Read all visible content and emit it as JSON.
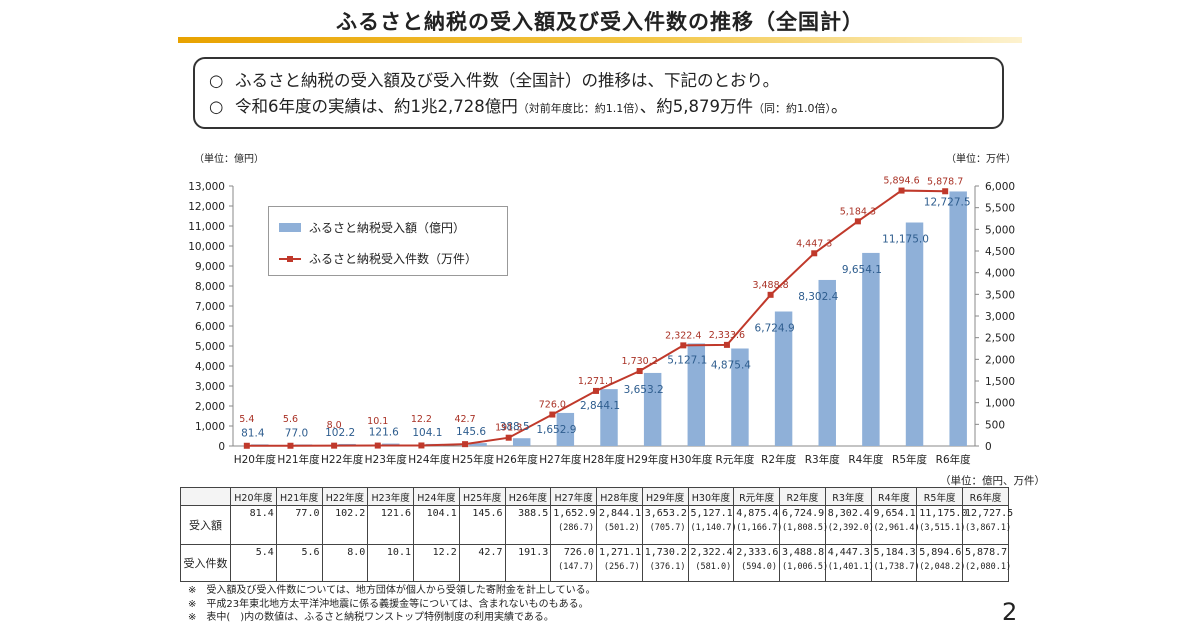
{
  "title": "ふるさと納税の受入額及び受入件数の推移（全国計）",
  "summary": {
    "bullet": "○",
    "line1": "ふるさと納税の受入額及び受入件数（全国計）の推移は、下記のとおり。",
    "line2_part1": "令和6年度の実績は、約1兆2,728億円",
    "line2_note1": "（対前年度比：約1.1倍）",
    "line2_part2": "、約5,879万件",
    "line2_note2": "（同：約1.0倍）",
    "line2_end": "。"
  },
  "chart_data": {
    "type": "bar+line",
    "categories": [
      "H20年度",
      "H21年度",
      "H22年度",
      "H23年度",
      "H24年度",
      "H25年度",
      "H26年度",
      "H27年度",
      "H28年度",
      "H29年度",
      "H30年度",
      "R元年度",
      "R2年度",
      "R3年度",
      "R4年度",
      "R5年度",
      "R6年度"
    ],
    "series": [
      {
        "name": "ふるさと納税受入額（億円）",
        "type": "bar",
        "axis": "left",
        "values": [
          81.4,
          77.0,
          102.2,
          121.6,
          104.1,
          145.6,
          388.5,
          1652.9,
          2844.1,
          3653.2,
          5127.1,
          4875.4,
          6724.9,
          8302.4,
          9654.1,
          11175.0,
          12727.5
        ],
        "labels": [
          "81.4",
          "77.0",
          "102.2",
          "121.6",
          "104.1",
          "145.6",
          "388.5",
          "1,652.9",
          "2,844.1",
          "3,653.2",
          "5,127.1",
          "4,875.4",
          "6,724.9",
          "8,302.4",
          "9,654.1",
          "11,175.0",
          "12,727.5"
        ]
      },
      {
        "name": "ふるさと納税受入件数（万件）",
        "type": "line",
        "axis": "right",
        "values": [
          5.4,
          5.6,
          8.0,
          10.1,
          12.2,
          42.7,
          191.3,
          726.0,
          1271.1,
          1730.2,
          2322.4,
          2333.6,
          3488.8,
          4447.3,
          5184.3,
          5894.6,
          5878.7
        ],
        "labels": [
          "5.4",
          "5.6",
          "8.0",
          "10.1",
          "12.2",
          "42.7",
          "191.3",
          "726.0",
          "1,271.1",
          "1,730.2",
          "2,322.4",
          "2,333.6",
          "3,488.8",
          "4,447.3",
          "5,184.3",
          "5,894.6",
          "5,878.7"
        ]
      }
    ],
    "left_axis": {
      "label": "（単位：億円）",
      "ylim": [
        0,
        13000
      ],
      "ticks": [
        "0",
        "1,000",
        "2,000",
        "3,000",
        "4,000",
        "5,000",
        "6,000",
        "7,000",
        "8,000",
        "9,000",
        "10,000",
        "11,000",
        "12,000",
        "13,000"
      ]
    },
    "right_axis": {
      "label": "（単位：万件）",
      "ylim": [
        0,
        6000
      ],
      "ticks": [
        "0",
        "500",
        "1,000",
        "1,500",
        "2,000",
        "2,500",
        "3,000",
        "3,500",
        "4,000",
        "4,500",
        "5,000",
        "5,500",
        "6,000"
      ]
    },
    "legend": {
      "bar": "ふるさと納税受入額（億円）",
      "line": "ふるさと納税受入件数（万件）",
      "position": "top-left"
    },
    "colors": {
      "bar": "#8fb0d8",
      "bar_label": "#2e5d8e",
      "line": "#c0392b",
      "line_label": "#a93226"
    }
  },
  "table": {
    "unit": "（単位：億円、万件）",
    "headers": [
      "H20年度",
      "H21年度",
      "H22年度",
      "H23年度",
      "H24年度",
      "H25年度",
      "H26年度",
      "H27年度",
      "H28年度",
      "H29年度",
      "H30年度",
      "R元年度",
      "R2年度",
      "R3年度",
      "R4年度",
      "R5年度",
      "R6年度"
    ],
    "rows": [
      {
        "label": "受入額",
        "values": [
          "81.4",
          "77.0",
          "102.2",
          "121.6",
          "104.1",
          "145.6",
          "388.5",
          "1,652.9",
          "2,844.1",
          "3,653.2",
          "5,127.1",
          "4,875.4",
          "6,724.9",
          "8,302.4",
          "9,654.1",
          "11,175.0",
          "12,727.5"
        ],
        "subs": [
          "",
          "",
          "",
          "",
          "",
          "",
          "",
          "(286.7)",
          "(501.2)",
          "(705.7)",
          "(1,140.7)",
          "(1,166.7)",
          "(1,808.5)",
          "(2,392.0)",
          "(2,961.4)",
          "(3,515.1)",
          "(3,867.1)"
        ]
      },
      {
        "label": "受入件数",
        "values": [
          "5.4",
          "5.6",
          "8.0",
          "10.1",
          "12.2",
          "42.7",
          "191.3",
          "726.0",
          "1,271.1",
          "1,730.2",
          "2,322.4",
          "2,333.6",
          "3,488.8",
          "4,447.3",
          "5,184.3",
          "5,894.6",
          "5,878.7"
        ],
        "subs": [
          "",
          "",
          "",
          "",
          "",
          "",
          "",
          "(147.7)",
          "(256.7)",
          "(376.1)",
          "(581.0)",
          "(594.0)",
          "(1,006.5)",
          "(1,401.1)",
          "(1,738.7)",
          "(2,048.2)",
          "(2,080.1)"
        ]
      }
    ]
  },
  "notes": [
    "※　受入額及び受入件数については、地方団体が個人から受領した寄附金を計上している。",
    "※　平成23年東北地方太平洋沖地震に係る義援金等については、含まれないものもある。",
    "※　表中(　)内の数値は、ふるさと納税ワンストップ特例制度の利用実績である。"
  ],
  "page_number": "2"
}
